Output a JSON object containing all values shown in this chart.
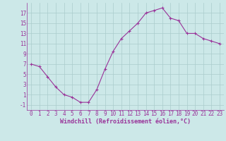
{
  "x": [
    0,
    1,
    2,
    3,
    4,
    5,
    6,
    7,
    8,
    9,
    10,
    11,
    12,
    13,
    14,
    15,
    16,
    17,
    18,
    19,
    20,
    21,
    22,
    23
  ],
  "y": [
    7,
    6.5,
    4.5,
    2.5,
    1,
    0.5,
    -0.5,
    -0.5,
    2,
    6,
    9.5,
    12,
    13.5,
    15,
    17,
    17.5,
    18,
    16,
    15.5,
    13,
    13,
    12,
    11.5,
    11
  ],
  "line_color": "#993399",
  "marker": "+",
  "bg_color": "#cce8e8",
  "grid_color": "#aacccc",
  "xlabel": "Windchill (Refroidissement éolien,°C)",
  "xlabel_color": "#993399",
  "xlim": [
    -0.5,
    23.5
  ],
  "ylim": [
    -2,
    19
  ],
  "yticks": [
    -1,
    1,
    3,
    5,
    7,
    9,
    11,
    13,
    15,
    17
  ],
  "xticks": [
    0,
    1,
    2,
    3,
    4,
    5,
    6,
    7,
    8,
    9,
    10,
    11,
    12,
    13,
    14,
    15,
    16,
    17,
    18,
    19,
    20,
    21,
    22,
    23
  ],
  "tick_color": "#993399",
  "font_size": 5.5,
  "xlabel_fontsize": 6.0
}
